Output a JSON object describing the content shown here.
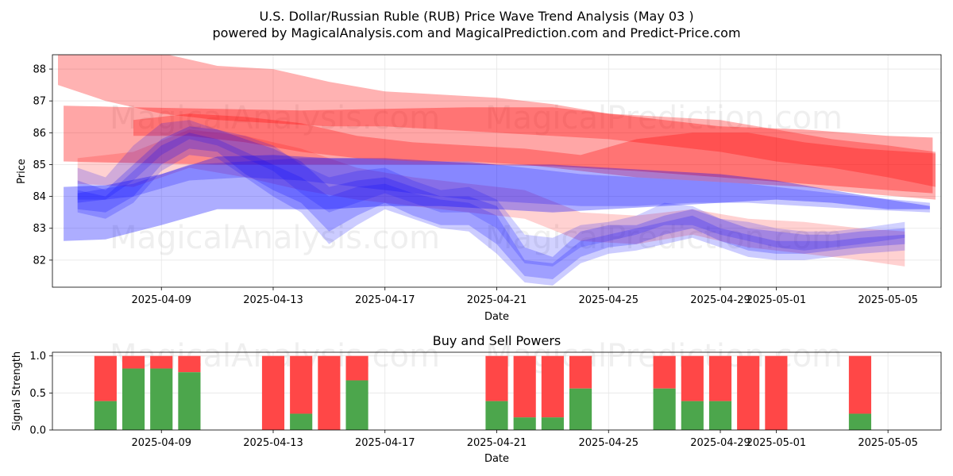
{
  "title_line1": "U.S. Dollar/Russian Ruble (RUB) Price Wave Trend Analysis (May 03 )",
  "title_line2": "powered by MagicalAnalysis.com and MagicalPrediction.com and Predict-Price.com",
  "watermarks": [
    "MagicalAnalysis.com",
    "MagicalPrediction.com"
  ],
  "chart_data": [
    {
      "type": "area",
      "title": "",
      "xlabel": "Date",
      "ylabel": "Price",
      "x_start": "2025-04-05",
      "x_range_days": [
        0.1,
        31.9
      ],
      "ylim": [
        81.15,
        88.45
      ],
      "yticks": [
        82,
        83,
        84,
        85,
        86,
        87,
        88
      ],
      "xticks": [
        {
          "day": 4,
          "label": "2025-04-09"
        },
        {
          "day": 8,
          "label": "2025-04-13"
        },
        {
          "day": 12,
          "label": "2025-04-17"
        },
        {
          "day": 16,
          "label": "2025-04-21"
        },
        {
          "day": 20,
          "label": "2025-04-25"
        },
        {
          "day": 24,
          "label": "2025-04-29"
        },
        {
          "day": 26,
          "label": "2025-05-01"
        },
        {
          "day": 30,
          "label": "2025-05-05"
        }
      ],
      "grid": true,
      "colors": {
        "red": "#ff0000",
        "blue": "#0000ff"
      },
      "bands": [
        {
          "name": "red-long-1",
          "color": "red",
          "opacity": 0.3,
          "x": [
            0.3,
            2,
            4,
            6,
            8,
            10,
            12,
            14,
            16,
            18,
            20,
            22,
            24,
            26,
            28,
            30,
            31.7
          ],
          "upper": [
            88.5,
            88.6,
            88.5,
            88.1,
            88.0,
            87.6,
            87.3,
            87.2,
            87.1,
            86.9,
            86.6,
            86.5,
            86.4,
            86.1,
            85.8,
            85.6,
            85.4
          ],
          "lower": [
            87.5,
            87.0,
            86.6,
            86.4,
            86.3,
            86.2,
            86.2,
            86.1,
            86.0,
            85.9,
            85.8,
            85.6,
            85.4,
            85.1,
            84.9,
            84.6,
            84.3
          ]
        },
        {
          "name": "red-long-2",
          "color": "red",
          "opacity": 0.35,
          "x": [
            0.5,
            3,
            6,
            9,
            12,
            15,
            18,
            21,
            24,
            27,
            30,
            31.6
          ],
          "upper": [
            86.85,
            86.8,
            86.75,
            86.7,
            86.75,
            86.8,
            86.8,
            86.5,
            86.2,
            86.1,
            85.9,
            85.85
          ],
          "lower": [
            85.1,
            85.05,
            85.0,
            85.0,
            85.0,
            85.0,
            84.95,
            84.8,
            84.6,
            84.4,
            84.2,
            84.1
          ]
        },
        {
          "name": "red-mid-1",
          "color": "red",
          "opacity": 0.3,
          "x": [
            3,
            5,
            7,
            9,
            11,
            13,
            15,
            17,
            19,
            21,
            23,
            25,
            27,
            29,
            31.7
          ],
          "upper": [
            86.4,
            86.6,
            86.5,
            86.3,
            85.9,
            85.7,
            85.6,
            85.5,
            85.3,
            85.8,
            86.0,
            86.0,
            85.7,
            85.5,
            85.35
          ],
          "lower": [
            85.9,
            85.9,
            85.7,
            85.4,
            85.2,
            85.1,
            85.1,
            85.0,
            84.8,
            84.6,
            84.5,
            84.4,
            84.3,
            84.1,
            83.9
          ]
        },
        {
          "name": "red-short",
          "color": "red",
          "opacity": 0.18,
          "x": [
            1,
            3,
            5,
            7,
            9,
            11,
            13,
            15,
            17,
            19,
            21,
            23,
            25,
            27,
            29,
            30.6
          ],
          "upper": [
            85.2,
            85.4,
            86.1,
            85.9,
            85.5,
            84.9,
            84.6,
            84.4,
            84.2,
            83.5,
            83.4,
            83.6,
            83.3,
            83.2,
            83.0,
            82.9
          ],
          "lower": [
            84.4,
            84.3,
            84.9,
            84.6,
            84.2,
            83.9,
            83.7,
            83.5,
            83.3,
            82.6,
            82.5,
            82.8,
            82.4,
            82.2,
            82.0,
            81.8
          ]
        },
        {
          "name": "blue-long-1",
          "color": "blue",
          "opacity": 0.32,
          "x": [
            0.5,
            2,
            4,
            6,
            8,
            10,
            12,
            14,
            16,
            18,
            20,
            22,
            24,
            26,
            28,
            30,
            31.5
          ],
          "upper": [
            84.3,
            84.35,
            84.7,
            85.25,
            85.3,
            85.2,
            85.2,
            85.1,
            85.0,
            85.0,
            84.9,
            84.8,
            84.7,
            84.5,
            84.2,
            83.9,
            83.7
          ],
          "lower": [
            82.6,
            82.65,
            83.1,
            83.6,
            83.6,
            83.6,
            83.7,
            83.7,
            83.6,
            83.5,
            83.6,
            83.7,
            83.8,
            83.9,
            83.8,
            83.6,
            83.6
          ]
        },
        {
          "name": "blue-long-2",
          "color": "blue",
          "opacity": 0.22,
          "x": [
            1,
            3,
            5,
            7,
            9,
            11,
            13,
            15,
            17,
            19,
            21,
            23,
            25,
            27,
            29,
            31.5
          ],
          "upper": [
            84.1,
            84.4,
            85.0,
            85.1,
            85.2,
            85.2,
            85.1,
            85.1,
            84.9,
            84.7,
            84.6,
            84.5,
            84.4,
            84.2,
            84.0,
            83.8
          ],
          "lower": [
            83.8,
            84.0,
            84.5,
            84.6,
            84.5,
            84.3,
            84.1,
            83.9,
            83.8,
            83.7,
            83.7,
            83.8,
            83.8,
            83.7,
            83.6,
            83.5
          ]
        },
        {
          "name": "blue-wave-1",
          "color": "blue",
          "opacity": 0.22,
          "x": [
            1,
            2,
            3,
            4,
            5,
            6,
            7,
            8,
            9,
            10,
            11,
            12,
            13,
            14,
            15,
            16,
            17,
            18,
            19,
            20,
            21,
            22,
            23,
            24,
            25,
            26,
            27,
            28,
            29,
            30.6
          ],
          "upper": [
            84.5,
            84.2,
            85.0,
            85.8,
            86.2,
            86.1,
            85.8,
            85.5,
            85.1,
            84.3,
            84.5,
            84.6,
            84.3,
            84.0,
            84.0,
            83.7,
            82.4,
            82.1,
            82.9,
            83.1,
            83.1,
            83.4,
            83.6,
            83.3,
            83.0,
            82.9,
            82.8,
            82.8,
            82.9,
            83.0
          ],
          "lower": [
            83.6,
            83.5,
            84.0,
            85.0,
            85.5,
            85.4,
            84.7,
            84.2,
            83.8,
            82.9,
            83.4,
            83.8,
            83.4,
            83.1,
            83.1,
            82.5,
            81.5,
            81.4,
            82.1,
            82.4,
            82.5,
            82.8,
            83.0,
            82.6,
            82.3,
            82.2,
            82.2,
            82.3,
            82.4,
            82.5
          ]
        },
        {
          "name": "blue-wave-2",
          "color": "blue",
          "opacity": 0.18,
          "x": [
            1,
            2,
            3,
            4,
            5,
            6,
            7,
            8,
            9,
            10,
            11,
            12,
            13,
            14,
            15,
            16,
            17,
            18,
            19,
            20,
            21,
            22,
            23,
            24,
            25,
            26,
            27,
            28,
            29,
            30.6
          ],
          "upper": [
            84.9,
            84.6,
            85.6,
            86.3,
            86.4,
            86.1,
            85.9,
            85.6,
            85.0,
            84.6,
            84.8,
            84.9,
            84.5,
            84.2,
            84.3,
            83.9,
            82.8,
            82.7,
            83.1,
            83.2,
            83.4,
            83.8,
            83.7,
            83.3,
            83.2,
            83.0,
            82.9,
            82.9,
            83.0,
            83.2
          ],
          "lower": [
            83.9,
            83.9,
            84.5,
            85.3,
            85.8,
            85.6,
            85.2,
            84.8,
            84.1,
            83.5,
            83.8,
            84.1,
            83.8,
            83.5,
            83.5,
            83.0,
            81.9,
            81.8,
            82.4,
            82.6,
            82.8,
            83.1,
            83.1,
            82.8,
            82.6,
            82.4,
            82.3,
            82.4,
            82.5,
            82.7
          ]
        },
        {
          "name": "blue-wave-3",
          "color": "blue",
          "opacity": 0.2,
          "x": [
            1,
            2,
            3,
            4,
            5,
            6,
            7,
            8,
            9,
            10,
            11,
            12,
            13,
            14,
            15,
            16,
            17,
            18,
            19,
            20,
            21,
            22,
            23,
            24,
            25,
            26,
            27,
            28,
            29,
            30.6
          ],
          "upper": [
            84.2,
            84.0,
            84.8,
            85.6,
            86.0,
            85.8,
            85.4,
            85.0,
            84.6,
            84.0,
            84.3,
            84.4,
            84.1,
            83.9,
            83.8,
            83.4,
            82.0,
            81.9,
            82.6,
            82.8,
            83.0,
            83.2,
            83.4,
            83.0,
            82.8,
            82.6,
            82.6,
            82.6,
            82.7,
            82.8
          ],
          "lower": [
            83.5,
            83.3,
            83.8,
            84.8,
            85.3,
            85.2,
            84.6,
            84.0,
            83.5,
            82.5,
            83.1,
            83.6,
            83.3,
            83.0,
            82.9,
            82.2,
            81.3,
            81.2,
            81.9,
            82.2,
            82.3,
            82.5,
            82.7,
            82.4,
            82.1,
            82.0,
            82.0,
            82.1,
            82.2,
            82.3
          ]
        }
      ]
    },
    {
      "type": "bar",
      "title": "Buy and Sell Powers",
      "xlabel": "Date",
      "ylabel": "Signal Strength",
      "ylim": [
        0,
        1.05
      ],
      "yticks": [
        0.0,
        0.5,
        1.0
      ],
      "x_range_days": [
        0.1,
        31.9
      ],
      "xticks": [
        {
          "day": 4,
          "label": "2025-04-09"
        },
        {
          "day": 8,
          "label": "2025-04-13"
        },
        {
          "day": 12,
          "label": "2025-04-17"
        },
        {
          "day": 16,
          "label": "2025-04-21"
        },
        {
          "day": 20,
          "label": "2025-04-25"
        },
        {
          "day": 24,
          "label": "2025-04-29"
        },
        {
          "day": 26,
          "label": "2025-05-01"
        },
        {
          "day": 30,
          "label": "2025-05-05"
        }
      ],
      "grid": true,
      "colors": {
        "buy": "#4ca64c",
        "sell": "#ff4747"
      },
      "series": [
        {
          "name": "Buy",
          "color": "buy"
        },
        {
          "name": "Sell",
          "color": "sell"
        }
      ],
      "bars": [
        {
          "day": 2,
          "buy": 0.39
        },
        {
          "day": 3,
          "buy": 0.83
        },
        {
          "day": 4,
          "buy": 0.83
        },
        {
          "day": 5,
          "buy": 0.78
        },
        {
          "day": 8,
          "buy": 0.0
        },
        {
          "day": 9,
          "buy": 0.22
        },
        {
          "day": 10,
          "buy": 0.0
        },
        {
          "day": 11,
          "buy": 0.67
        },
        {
          "day": 16,
          "buy": 0.39
        },
        {
          "day": 17,
          "buy": 0.17
        },
        {
          "day": 18,
          "buy": 0.17
        },
        {
          "day": 19,
          "buy": 0.56
        },
        {
          "day": 22,
          "buy": 0.56
        },
        {
          "day": 23,
          "buy": 0.39
        },
        {
          "day": 24,
          "buy": 0.39
        },
        {
          "day": 25,
          "buy": 0.0
        },
        {
          "day": 26,
          "buy": 0.0
        },
        {
          "day": 29,
          "buy": 0.22
        }
      ]
    }
  ]
}
